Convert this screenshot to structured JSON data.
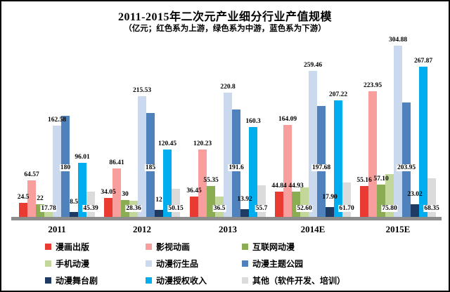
{
  "chart_data": {
    "type": "bar",
    "title": "2011-2015年二次元产业细分行业产值规模",
    "subtitle": "（亿元；红色系为上游，绿色系为中游，蓝色系为下游）",
    "unit": "亿元",
    "categories": [
      "2011",
      "2012",
      "2013",
      "2014E",
      "2015E"
    ],
    "series": [
      {
        "name": "漫画出版",
        "color": "#ea3b32",
        "values": [
          24.5,
          34.05,
          36.45,
          44.84,
          55.16
        ],
        "labels": [
          "24.5",
          "34.05",
          "36.45",
          "44.84",
          "55.16"
        ],
        "label_pos": "above"
      },
      {
        "name": "影视动画",
        "color": "#f89f9d",
        "values": [
          64.57,
          86.41,
          120.23,
          164.09,
          223.95
        ],
        "labels": [
          "64.57",
          "86.41",
          "120.23",
          "164.09",
          "223.95"
        ],
        "label_pos": "above"
      },
      {
        "name": "互联网动漫",
        "color": "#8aad53",
        "values": [
          22,
          30,
          55.35,
          44.93,
          57.1
        ],
        "labels": [
          "22",
          "30",
          "55.35",
          "44.93",
          "57.10"
        ],
        "label_pos": "above"
      },
      {
        "name": "手机动漫",
        "color": "#c4d79b",
        "values": [
          17.78,
          28.36,
          36.5,
          52.6,
          75.8
        ],
        "labels": [
          "17.78",
          "28.36",
          "36.5",
          "52.60",
          "75.80"
        ],
        "label_pos": "inside-base"
      },
      {
        "name": "动漫衍生品",
        "color": "#cbd9ef",
        "values": [
          162.58,
          215.53,
          220.8,
          259.46,
          304.88
        ],
        "labels": [
          "162.58",
          "215.53",
          "220.8",
          "259.46",
          "304.88"
        ],
        "label_pos": "above"
      },
      {
        "name": "动漫主题公园",
        "color": "#4f81bd",
        "values": [
          180,
          185,
          191.6,
          197.68,
          203.95
        ],
        "labels": [
          "180",
          "185",
          "191.6",
          "197.68",
          "203.95"
        ],
        "label_pos": "inside-mid"
      },
      {
        "name": "动漫舞台剧",
        "color": "#1f3b63",
        "values": [
          8.5,
          12,
          13.92,
          17.9,
          23.02
        ],
        "labels": [
          "8.5",
          "12",
          "13.92",
          "17.90",
          "23.02"
        ],
        "label_pos": "above-raised"
      },
      {
        "name": "动漫授权收入",
        "color": "#00aeef",
        "values": [
          96.01,
          120.45,
          160.3,
          207.22,
          267.87
        ],
        "labels": [
          "96.01",
          "120.45",
          "160.3",
          "207.22",
          "267.87"
        ],
        "label_pos": "above"
      },
      {
        "name": "其他（软件开发、培训）",
        "color": "#dbdbdb",
        "values": [
          45.39,
          50.15,
          55.7,
          61.7,
          68.35
        ],
        "labels": [
          "45.39",
          "50.15",
          "55.7",
          "61.70",
          "68.35"
        ],
        "label_pos": "inside-base"
      }
    ],
    "ylim": [
      0,
      310
    ],
    "grid": false,
    "legend_position": "bottom",
    "axis_line_color": "#8c8c8c",
    "background_color": "#ffffff"
  }
}
